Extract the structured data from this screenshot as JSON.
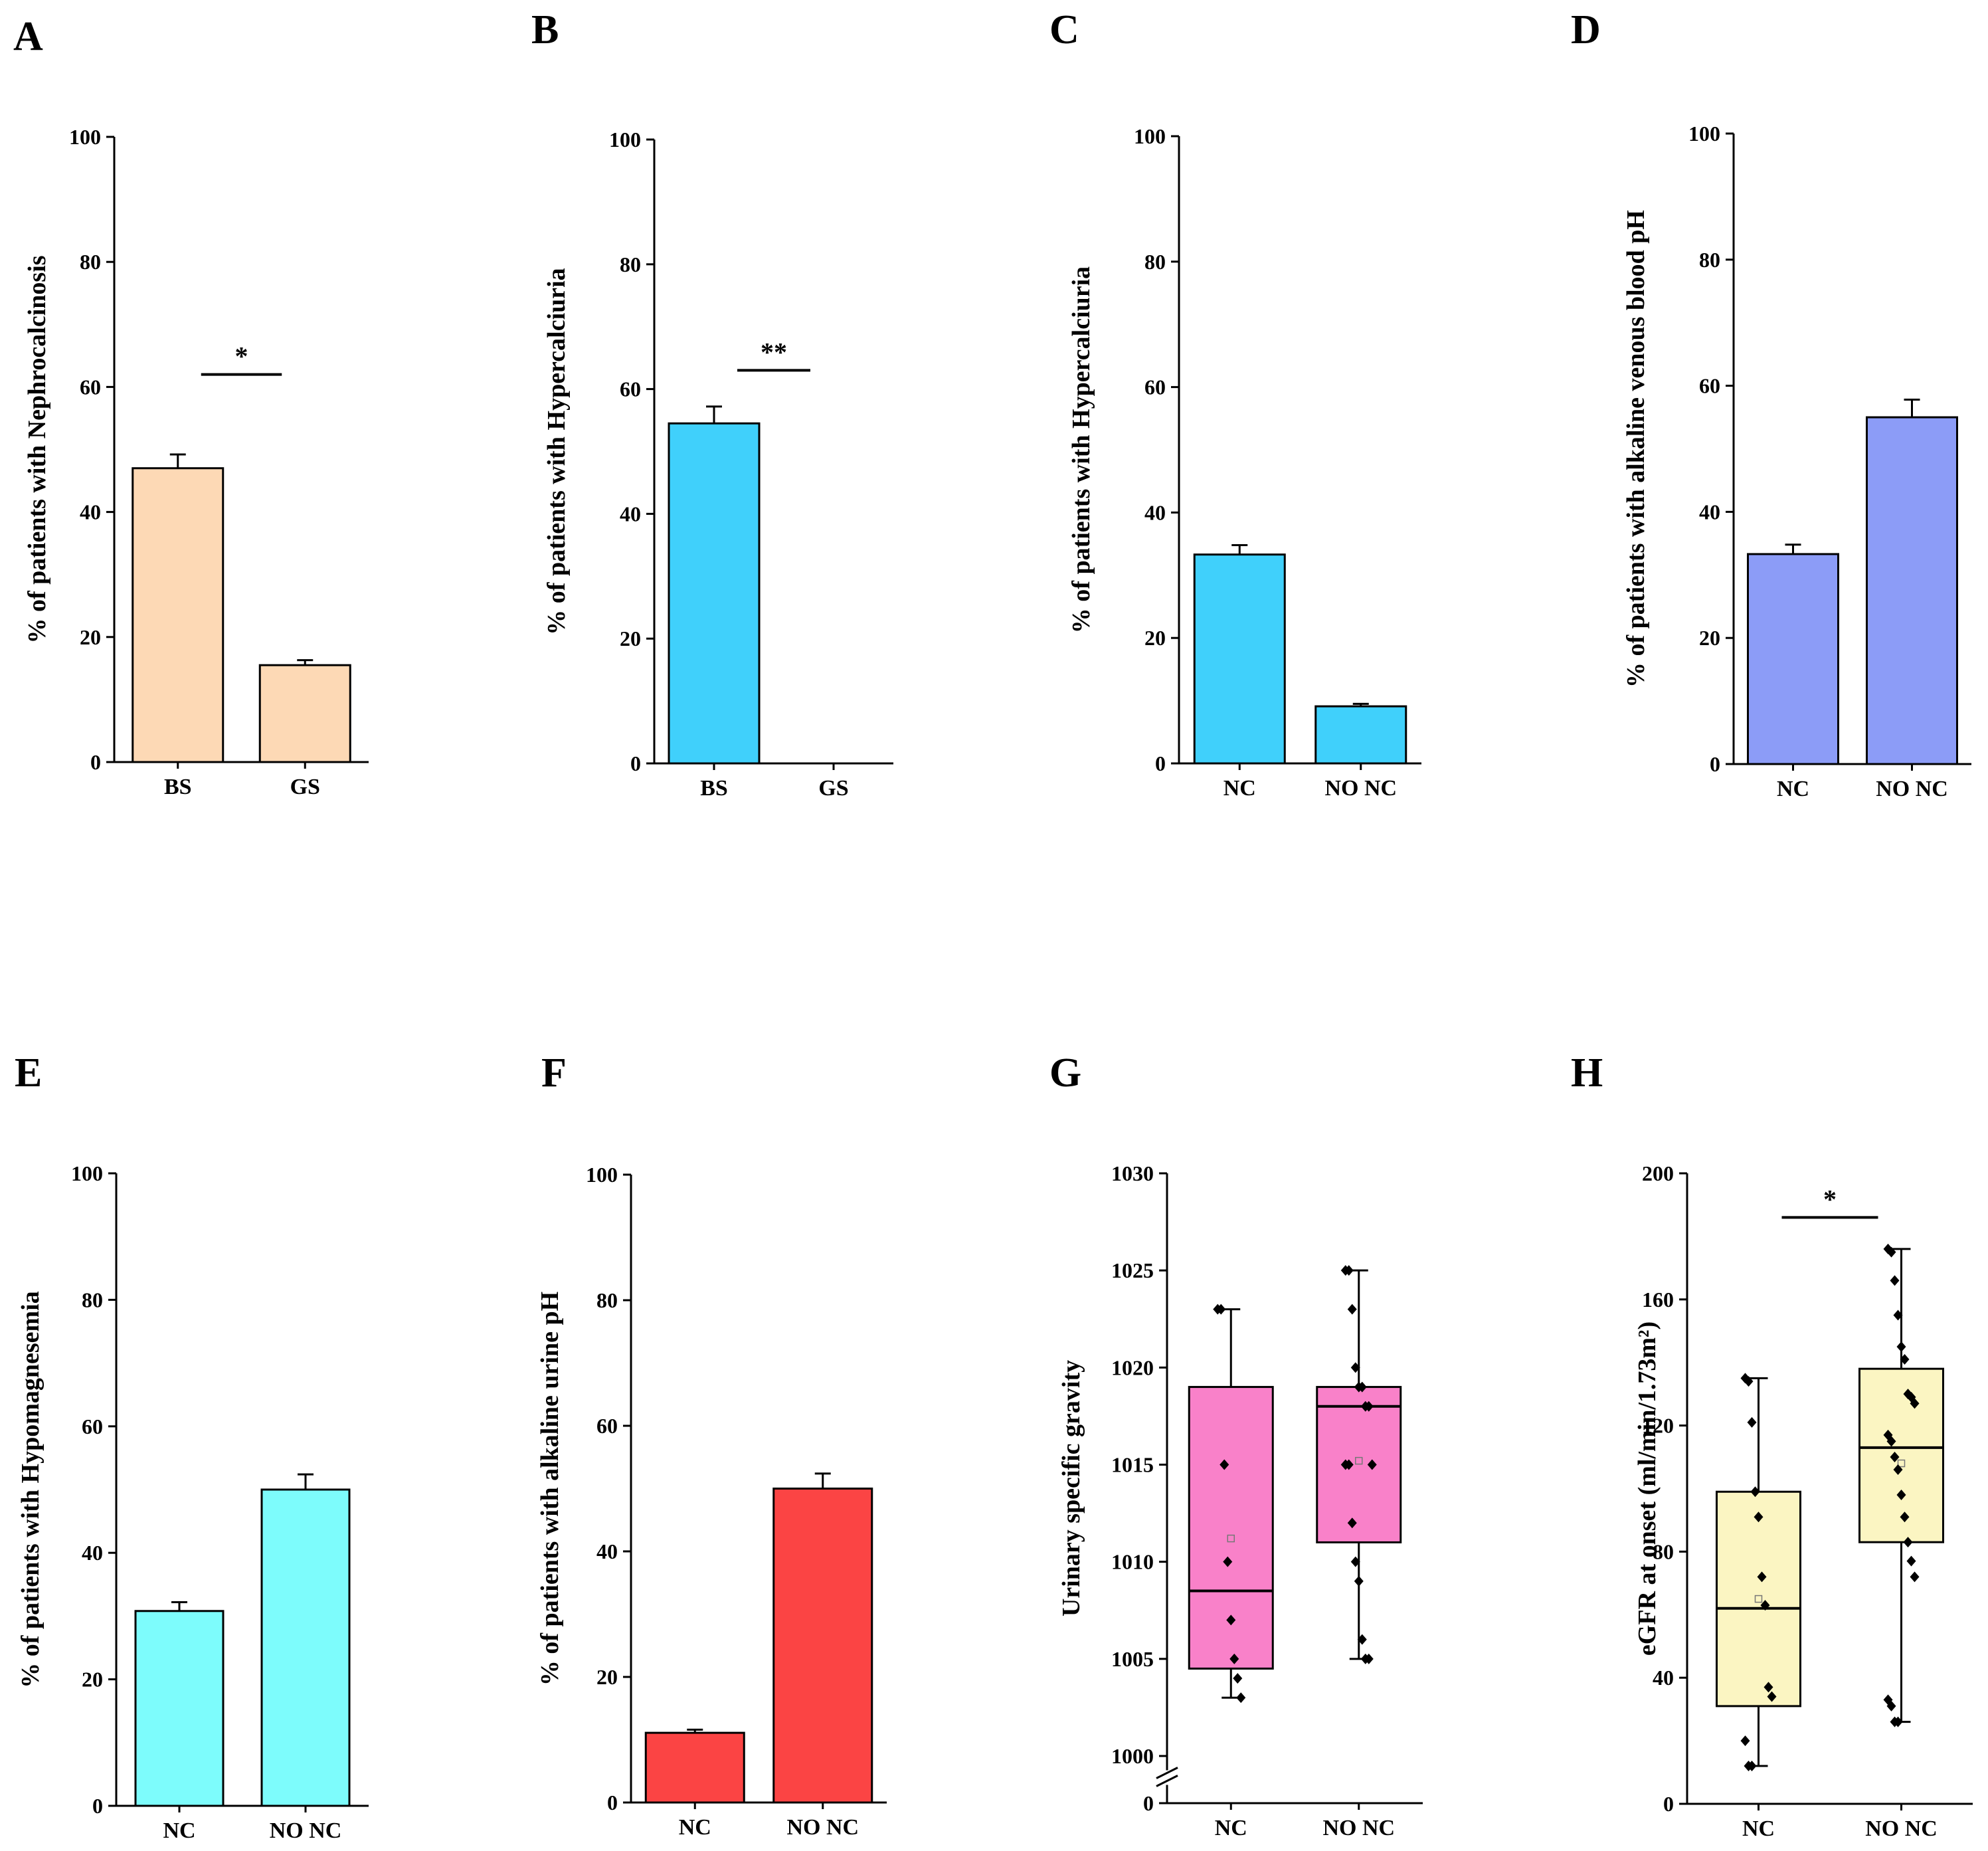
{
  "colors": {
    "axis": "#000000",
    "peach": "#fdd9b5",
    "cyan": "#40d0fb",
    "periwinkle": "#8c9cf7",
    "aqua": "#7dfcfc",
    "red": "#fb4444",
    "pink": "#f981c9",
    "cream": "#fbf5c2"
  },
  "chart_data": [
    {
      "panel": "A",
      "type": "bar",
      "ylabel": "% of patients with Nephrocalcinosis",
      "categories": [
        "BS",
        "GS"
      ],
      "values": [
        47,
        15.5
      ],
      "errors": [
        2.2,
        0.8
      ],
      "ylim": [
        0,
        100
      ],
      "yticks": [
        "0",
        "20",
        "40",
        "60",
        "80",
        "100"
      ],
      "color_key": "peach",
      "significance": {
        "between": [
          0,
          1
        ],
        "label": "*",
        "y": 62
      }
    },
    {
      "panel": "B",
      "type": "bar",
      "ylabel": "% of patients with Hypercalciuria",
      "categories": [
        "BS",
        "GS"
      ],
      "values": [
        54.5,
        0
      ],
      "errors": [
        2.7,
        0
      ],
      "ylim": [
        0,
        100
      ],
      "yticks": [
        "0",
        "20",
        "40",
        "60",
        "80",
        "100"
      ],
      "color_key": "cyan",
      "significance": {
        "between": [
          0,
          1
        ],
        "label": "**",
        "y": 63
      }
    },
    {
      "panel": "C",
      "type": "bar",
      "ylabel": "% of patients with Hypercalciuria",
      "categories": [
        "NC",
        "NO NC"
      ],
      "values": [
        33.3,
        9.1
      ],
      "errors": [
        1.5,
        0.4
      ],
      "ylim": [
        0,
        100
      ],
      "yticks": [
        "0",
        "20",
        "40",
        "60",
        "80",
        "100"
      ],
      "color_key": "cyan"
    },
    {
      "panel": "D",
      "type": "bar",
      "ylabel": "% of patients with alkaline venous blood pH",
      "categories": [
        "NC",
        "NO NC"
      ],
      "values": [
        33.3,
        55
      ],
      "errors": [
        1.5,
        2.8
      ],
      "ylim": [
        0,
        100
      ],
      "yticks": [
        "0",
        "20",
        "40",
        "60",
        "80",
        "100"
      ],
      "color_key": "periwinkle"
    },
    {
      "panel": "E",
      "type": "bar",
      "ylabel": "% of patients with Hypomagnesemia",
      "categories": [
        "NC",
        "NO NC"
      ],
      "values": [
        30.8,
        50
      ],
      "errors": [
        1.4,
        2.4
      ],
      "ylim": [
        0,
        100
      ],
      "yticks": [
        "0",
        "20",
        "40",
        "60",
        "80",
        "100"
      ],
      "color_key": "aqua"
    },
    {
      "panel": "F",
      "type": "bar",
      "ylabel": "% of patients with alkaline urine pH",
      "categories": [
        "NC",
        "NO NC"
      ],
      "values": [
        11.1,
        50
      ],
      "errors": [
        0.5,
        2.4
      ],
      "ylim": [
        0,
        100
      ],
      "yticks": [
        "0",
        "20",
        "40",
        "60",
        "80",
        "100"
      ],
      "color_key": "red"
    },
    {
      "panel": "G",
      "type": "box",
      "ylabel": "Urinary specific gravity",
      "categories": [
        "NC",
        "NO NC"
      ],
      "ylim": [
        1000,
        1030
      ],
      "axis_break": true,
      "yticks": [
        "1000",
        "1005",
        "1010",
        "1015",
        "1020",
        "1025",
        "1030"
      ],
      "zero_tick": "0",
      "color_key": "pink",
      "boxes": [
        {
          "q1": 1004.5,
          "median": 1008.5,
          "q3": 1019,
          "whisker_low": 1003,
          "whisker_high": 1023,
          "mean": 1011.2,
          "points": [
            1023,
            1023,
            1015,
            1010,
            1007,
            1005,
            1004,
            1003
          ]
        },
        {
          "q1": 1011,
          "median": 1018,
          "q3": 1019,
          "whisker_low": 1005,
          "whisker_high": 1025,
          "mean": 1015.2,
          "points": [
            1025,
            1025,
            1023,
            1020,
            1019,
            1019,
            1018,
            1018,
            1015,
            1015,
            1015,
            1012,
            1010,
            1009,
            1006,
            1005,
            1005
          ]
        }
      ]
    },
    {
      "panel": "H",
      "type": "box",
      "ylabel": "eGFR at onset (ml/min/1.73m²)",
      "categories": [
        "NC",
        "NO NC"
      ],
      "ylim": [
        0,
        200
      ],
      "yticks": [
        "0",
        "40",
        "80",
        "120",
        "160",
        "200"
      ],
      "color_key": "cream",
      "significance": {
        "between": [
          0,
          1
        ],
        "label": "*",
        "y": 186
      },
      "boxes": [
        {
          "q1": 31,
          "median": 62,
          "q3": 99,
          "whisker_low": 12,
          "whisker_high": 135,
          "mean": 65,
          "points": [
            135,
            134,
            121,
            99,
            91,
            72,
            63,
            37,
            34,
            20,
            12,
            12
          ]
        },
        {
          "q1": 83,
          "median": 113,
          "q3": 138,
          "whisker_low": 26,
          "whisker_high": 176,
          "mean": 108,
          "points": [
            176,
            175,
            166,
            155,
            145,
            141,
            130,
            129,
            127,
            117,
            115,
            110,
            106,
            98,
            91,
            83,
            77,
            72,
            33,
            31,
            26,
            26
          ]
        }
      ]
    }
  ]
}
